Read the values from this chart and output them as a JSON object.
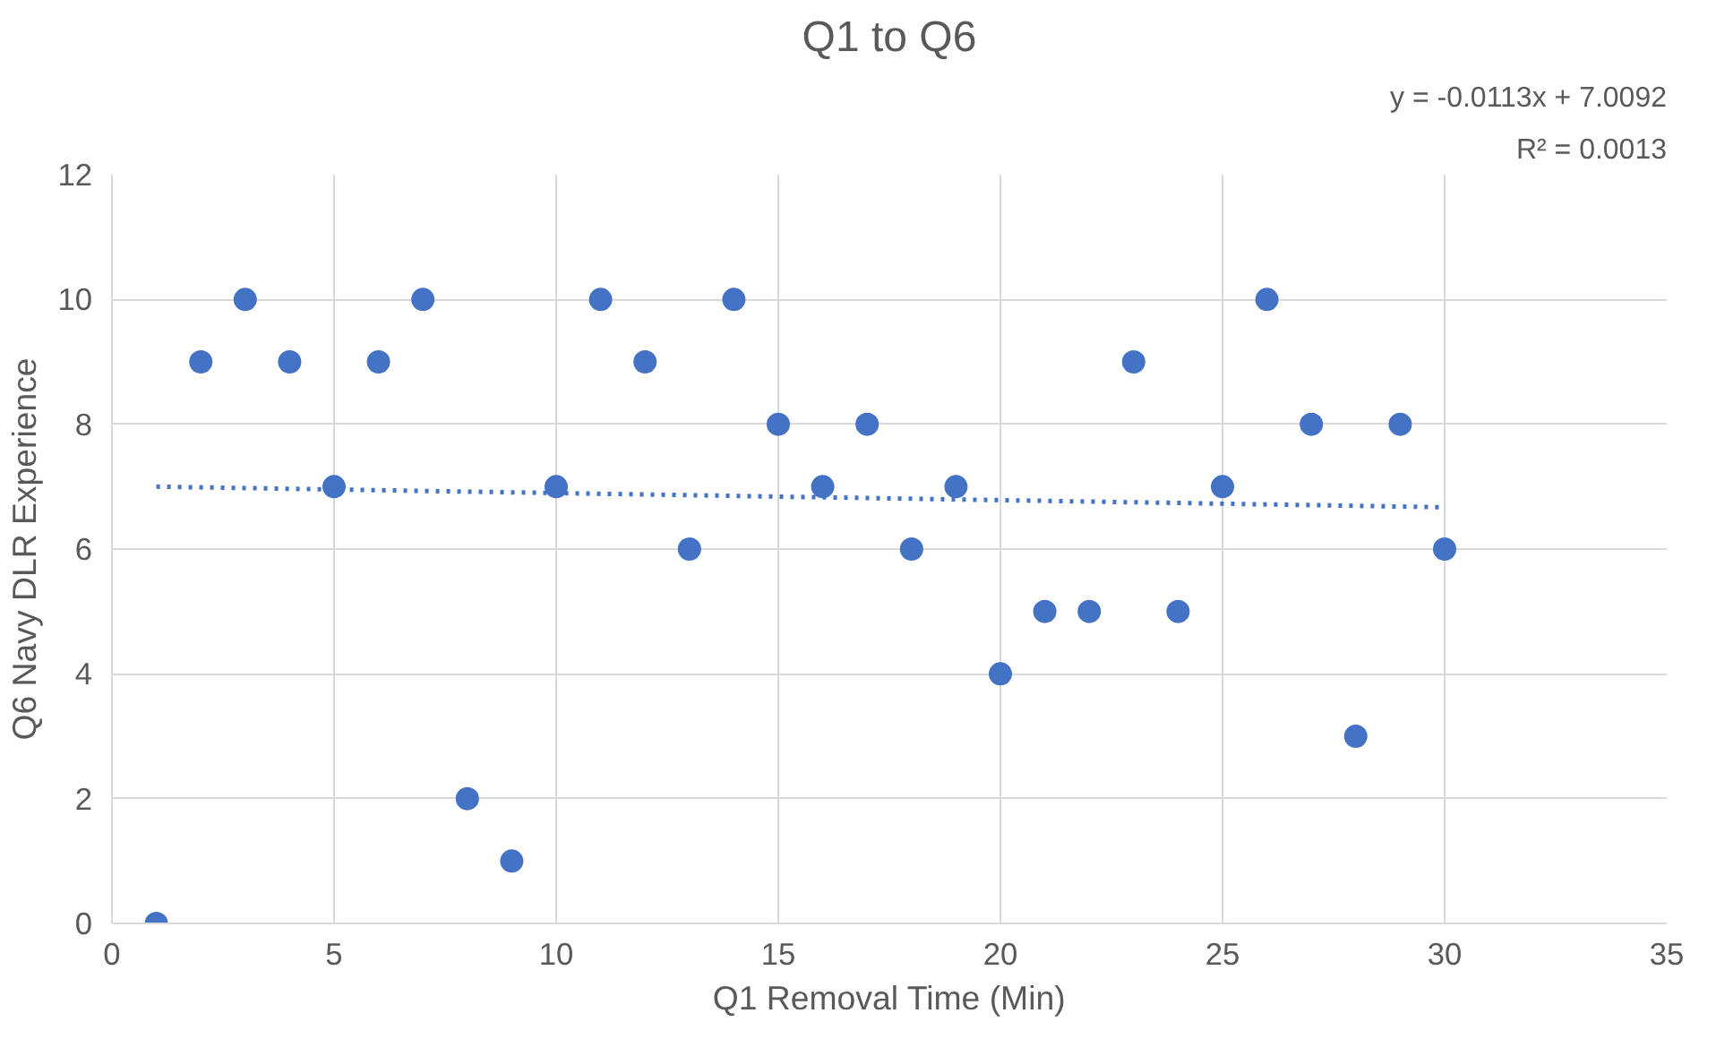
{
  "chart_data": {
    "type": "scatter",
    "title": "Q1 to Q6",
    "xlabel": "Q1 Removal Time (Min)",
    "ylabel": "Q6 Navy DLR Experience",
    "annotations": [
      "y = -0.0113x + 7.0092",
      "R² = 0.0013"
    ],
    "series": [
      {
        "color": "#4472c4",
        "marker": "circle",
        "x": [
          1,
          2,
          3,
          4,
          5,
          6,
          7,
          8,
          9,
          10,
          11,
          12,
          13,
          14,
          15,
          16,
          17,
          18,
          19,
          20,
          21,
          22,
          23,
          24,
          25,
          26,
          27,
          28,
          29,
          30
        ],
        "values": [
          0,
          9,
          10,
          9,
          7,
          9,
          10,
          2,
          1,
          7,
          10,
          9,
          6,
          10,
          8,
          7,
          8,
          6,
          7,
          4,
          5,
          5,
          9,
          5,
          7,
          10,
          8,
          3,
          8,
          6
        ]
      },
      {
        "type": "line",
        "color": "#4472c4",
        "line_style": "dotted",
        "marker": "none",
        "x": [
          1,
          30
        ],
        "values": [
          7.0,
          6.67
        ]
      }
    ],
    "xlim": [
      0,
      35
    ],
    "xticks": [
      0,
      5,
      10,
      15,
      20,
      25,
      30,
      35
    ],
    "ylim": [
      0,
      12
    ],
    "yticks": [
      0,
      2,
      4,
      6,
      8,
      10,
      12
    ],
    "grid": true
  }
}
